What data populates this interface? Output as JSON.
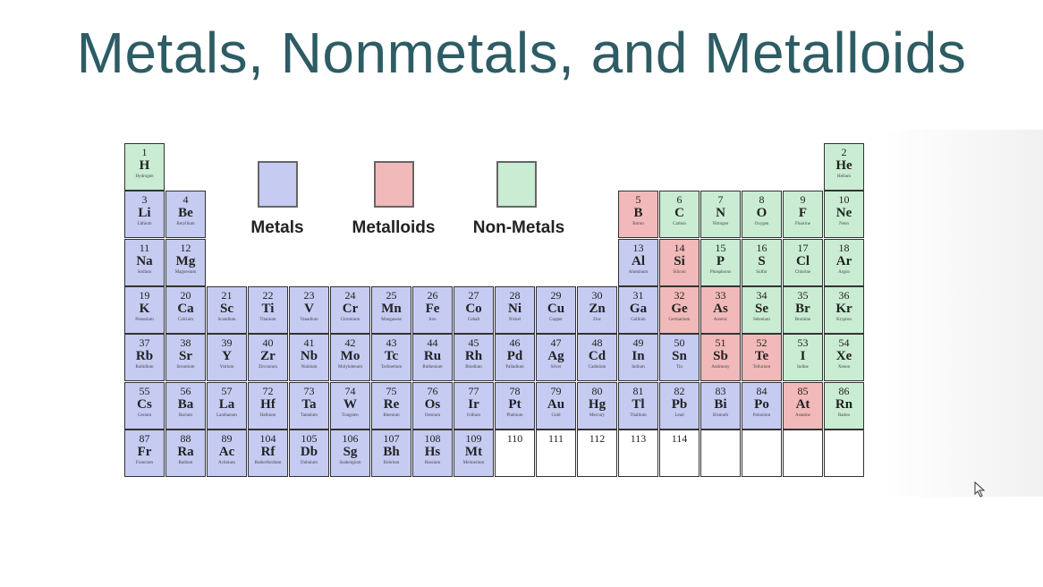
{
  "title": "Metals, Nonmetals, and Metalloids",
  "colors": {
    "metal": "#c5cbf1",
    "metalloid": "#f1b9b9",
    "nonmetal": "#c9ecd3",
    "title": "#2d5c64"
  },
  "legend": [
    {
      "label": "Metals",
      "type": "m"
    },
    {
      "label": "Metalloids",
      "type": "l"
    },
    {
      "label": "Non-Metals",
      "type": "n"
    }
  ],
  "elements": [
    [
      "1",
      "H",
      "Hydrogen",
      1,
      1,
      "n"
    ],
    [
      "2",
      "He",
      "Helium",
      1,
      18,
      "n"
    ],
    [
      "3",
      "Li",
      "Lithium",
      2,
      1,
      "m"
    ],
    [
      "4",
      "Be",
      "Beryllium",
      2,
      2,
      "m"
    ],
    [
      "5",
      "B",
      "Boron",
      2,
      13,
      "l"
    ],
    [
      "6",
      "C",
      "Carbon",
      2,
      14,
      "n"
    ],
    [
      "7",
      "N",
      "Nitrogen",
      2,
      15,
      "n"
    ],
    [
      "8",
      "O",
      "Oxygen",
      2,
      16,
      "n"
    ],
    [
      "9",
      "F",
      "Fluorine",
      2,
      17,
      "n"
    ],
    [
      "10",
      "Ne",
      "Neon",
      2,
      18,
      "n"
    ],
    [
      "11",
      "Na",
      "Sodium",
      3,
      1,
      "m"
    ],
    [
      "12",
      "Mg",
      "Magnesium",
      3,
      2,
      "m"
    ],
    [
      "13",
      "Al",
      "Aluminum",
      3,
      13,
      "m"
    ],
    [
      "14",
      "Si",
      "Silicon",
      3,
      14,
      "l"
    ],
    [
      "15",
      "P",
      "Phosphorus",
      3,
      15,
      "n"
    ],
    [
      "16",
      "S",
      "Sulfur",
      3,
      16,
      "n"
    ],
    [
      "17",
      "Cl",
      "Chlorine",
      3,
      17,
      "n"
    ],
    [
      "18",
      "Ar",
      "Argon",
      3,
      18,
      "n"
    ],
    [
      "19",
      "K",
      "Potassium",
      4,
      1,
      "m"
    ],
    [
      "20",
      "Ca",
      "Calcium",
      4,
      2,
      "m"
    ],
    [
      "21",
      "Sc",
      "Scandium",
      4,
      3,
      "m"
    ],
    [
      "22",
      "Ti",
      "Titanium",
      4,
      4,
      "m"
    ],
    [
      "23",
      "V",
      "Vanadium",
      4,
      5,
      "m"
    ],
    [
      "24",
      "Cr",
      "Chromium",
      4,
      6,
      "m"
    ],
    [
      "25",
      "Mn",
      "Manganese",
      4,
      7,
      "m"
    ],
    [
      "26",
      "Fe",
      "Iron",
      4,
      8,
      "m"
    ],
    [
      "27",
      "Co",
      "Cobalt",
      4,
      9,
      "m"
    ],
    [
      "28",
      "Ni",
      "Nickel",
      4,
      10,
      "m"
    ],
    [
      "29",
      "Cu",
      "Copper",
      4,
      11,
      "m"
    ],
    [
      "30",
      "Zn",
      "Zinc",
      4,
      12,
      "m"
    ],
    [
      "31",
      "Ga",
      "Gallium",
      4,
      13,
      "m"
    ],
    [
      "32",
      "Ge",
      "Germanium",
      4,
      14,
      "l"
    ],
    [
      "33",
      "As",
      "Arsenic",
      4,
      15,
      "l"
    ],
    [
      "34",
      "Se",
      "Selenium",
      4,
      16,
      "n"
    ],
    [
      "35",
      "Br",
      "Bromine",
      4,
      17,
      "n"
    ],
    [
      "36",
      "Kr",
      "Krypton",
      4,
      18,
      "n"
    ],
    [
      "37",
      "Rb",
      "Rubidium",
      5,
      1,
      "m"
    ],
    [
      "38",
      "Sr",
      "Strontium",
      5,
      2,
      "m"
    ],
    [
      "39",
      "Y",
      "Yttrium",
      5,
      3,
      "m"
    ],
    [
      "40",
      "Zr",
      "Zirconium",
      5,
      4,
      "m"
    ],
    [
      "41",
      "Nb",
      "Niobium",
      5,
      5,
      "m"
    ],
    [
      "42",
      "Mo",
      "Molybdenum",
      5,
      6,
      "m"
    ],
    [
      "43",
      "Tc",
      "Technetium",
      5,
      7,
      "m"
    ],
    [
      "44",
      "Ru",
      "Ruthenium",
      5,
      8,
      "m"
    ],
    [
      "45",
      "Rh",
      "Rhodium",
      5,
      9,
      "m"
    ],
    [
      "46",
      "Pd",
      "Palladium",
      5,
      10,
      "m"
    ],
    [
      "47",
      "Ag",
      "Silver",
      5,
      11,
      "m"
    ],
    [
      "48",
      "Cd",
      "Cadmium",
      5,
      12,
      "m"
    ],
    [
      "49",
      "In",
      "Indium",
      5,
      13,
      "m"
    ],
    [
      "50",
      "Sn",
      "Tin",
      5,
      14,
      "m"
    ],
    [
      "51",
      "Sb",
      "Antimony",
      5,
      15,
      "l"
    ],
    [
      "52",
      "Te",
      "Tellurium",
      5,
      16,
      "l"
    ],
    [
      "53",
      "I",
      "Iodine",
      5,
      17,
      "n"
    ],
    [
      "54",
      "Xe",
      "Xenon",
      5,
      18,
      "n"
    ],
    [
      "55",
      "Cs",
      "Cesium",
      6,
      1,
      "m"
    ],
    [
      "56",
      "Ba",
      "Barium",
      6,
      2,
      "m"
    ],
    [
      "57",
      "La",
      "Lanthanum",
      6,
      3,
      "m"
    ],
    [
      "72",
      "Hf",
      "Hafnium",
      6,
      4,
      "m"
    ],
    [
      "73",
      "Ta",
      "Tantalum",
      6,
      5,
      "m"
    ],
    [
      "74",
      "W",
      "Tungsten",
      6,
      6,
      "m"
    ],
    [
      "75",
      "Re",
      "Rhenium",
      6,
      7,
      "m"
    ],
    [
      "76",
      "Os",
      "Osmium",
      6,
      8,
      "m"
    ],
    [
      "77",
      "Ir",
      "Iridium",
      6,
      9,
      "m"
    ],
    [
      "78",
      "Pt",
      "Platinum",
      6,
      10,
      "m"
    ],
    [
      "79",
      "Au",
      "Gold",
      6,
      11,
      "m"
    ],
    [
      "80",
      "Hg",
      "Mercury",
      6,
      12,
      "m"
    ],
    [
      "81",
      "Tl",
      "Thallium",
      6,
      13,
      "m"
    ],
    [
      "82",
      "Pb",
      "Lead",
      6,
      14,
      "m"
    ],
    [
      "83",
      "Bi",
      "Bismuth",
      6,
      15,
      "m"
    ],
    [
      "84",
      "Po",
      "Polonium",
      6,
      16,
      "m"
    ],
    [
      "85",
      "At",
      "Astatine",
      6,
      17,
      "l"
    ],
    [
      "86",
      "Rn",
      "Radon",
      6,
      18,
      "n"
    ],
    [
      "87",
      "Fr",
      "Francium",
      7,
      1,
      "m"
    ],
    [
      "88",
      "Ra",
      "Radium",
      7,
      2,
      "m"
    ],
    [
      "89",
      "Ac",
      "Actinium",
      7,
      3,
      "m"
    ],
    [
      "104",
      "Rf",
      "Rutherfordium",
      7,
      4,
      "m"
    ],
    [
      "105",
      "Db",
      "Dubnium",
      7,
      5,
      "m"
    ],
    [
      "106",
      "Sg",
      "Seaborgium",
      7,
      6,
      "m"
    ],
    [
      "107",
      "Bh",
      "Bohrium",
      7,
      7,
      "m"
    ],
    [
      "108",
      "Hs",
      "Hassium",
      7,
      8,
      "m"
    ],
    [
      "109",
      "Mt",
      "Meitnerium",
      7,
      9,
      "m"
    ],
    [
      "110",
      "",
      "",
      7,
      10,
      "e"
    ],
    [
      "111",
      "",
      "",
      7,
      11,
      "e"
    ],
    [
      "112",
      "",
      "",
      7,
      12,
      "e"
    ],
    [
      "113",
      "",
      "",
      7,
      13,
      "e"
    ],
    [
      "114",
      "",
      "",
      7,
      14,
      "e"
    ],
    [
      "",
      "",
      "",
      7,
      15,
      "e"
    ],
    [
      "",
      "",
      "",
      7,
      16,
      "e"
    ],
    [
      "",
      "",
      "",
      7,
      17,
      "e"
    ],
    [
      "",
      "",
      "",
      7,
      18,
      "e"
    ]
  ]
}
